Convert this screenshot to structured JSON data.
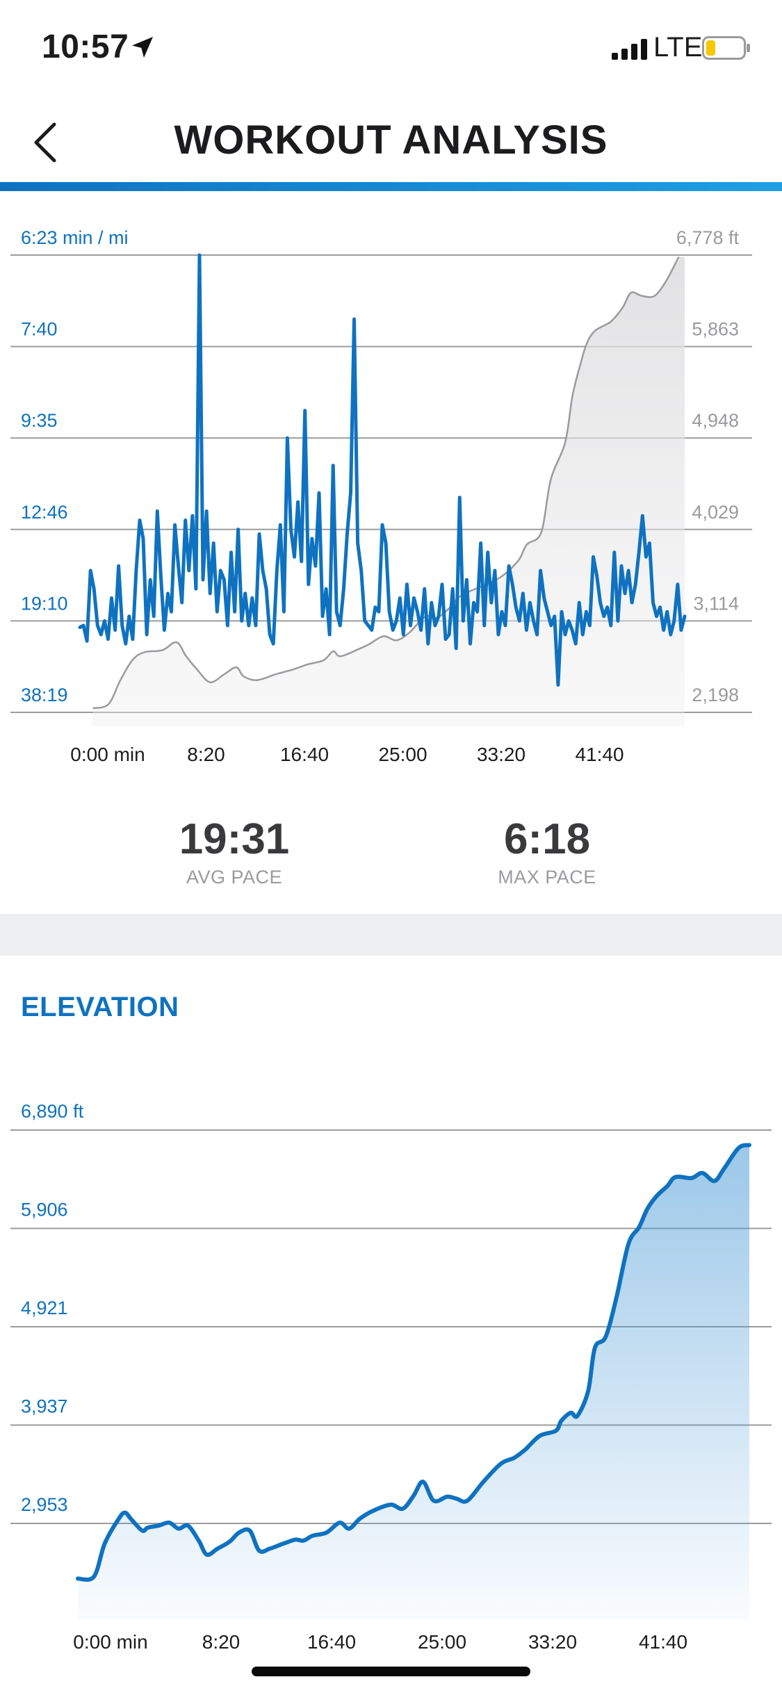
{
  "status_bar": {
    "time": "10:57",
    "network": "LTE",
    "battery_color": "#f5c800"
  },
  "header": {
    "title": "WORKOUT ANALYSIS",
    "back_icon": "chevron-left-icon",
    "accent": "#0f72c0"
  },
  "pace_chart": {
    "stats": {
      "avg_pace": "19:31",
      "avg_label": "AVG PACE",
      "max_pace": "6:18",
      "max_label": "MAX PACE"
    }
  },
  "elevation": {
    "section_title": "ELEVATION"
  },
  "chart_data": [
    {
      "type": "line",
      "title": "",
      "xlabel": "",
      "ylabel": "min / mi",
      "y2label": "ft",
      "x_ticks": [
        "0:00 min",
        "8:20",
        "16:40",
        "25:00",
        "33:20",
        "41:40"
      ],
      "y_ticks_left": [
        "6:23 min / mi",
        "7:40",
        "9:35",
        "12:46",
        "19:10",
        "38:19"
      ],
      "y_ticks_right": [
        "6,778 ft",
        "5,863",
        "4,948",
        "4,029",
        "3,114",
        "2,198"
      ],
      "ylim_elevation": [
        2198,
        6778
      ],
      "x_max_minutes": 50,
      "series": [
        {
          "name": "Pace",
          "axis": "left",
          "color": "#0f72c0",
          "unit": "grid level (0 = 38:19, 5 = 6:23)",
          "values": [
            0.93,
            0.95,
            0.78,
            1.55,
            1.35,
            0.95,
            0.85,
            1.0,
            0.8,
            1.25,
            0.9,
            1.6,
            0.95,
            0.75,
            1.05,
            0.8,
            1.55,
            2.1,
            1.9,
            0.85,
            1.45,
            1.05,
            2.2,
            1.5,
            0.9,
            1.3,
            1.1,
            2.05,
            1.6,
            1.2,
            2.1,
            1.55,
            2.15,
            1.35,
            5.0,
            1.45,
            2.2,
            1.3,
            1.85,
            1.1,
            1.55,
            1.45,
            0.95,
            1.75,
            1.1,
            2.0,
            1.0,
            1.3,
            0.95,
            1.25,
            0.95,
            1.95,
            1.55,
            1.35,
            0.85,
            0.75,
            1.55,
            2.05,
            1.1,
            3.0,
            2.0,
            1.7,
            2.3,
            1.65,
            3.3,
            1.4,
            1.9,
            1.6,
            2.4,
            1.05,
            1.35,
            0.85,
            2.7,
            1.1,
            0.95,
            1.35,
            1.95,
            2.4,
            4.3,
            1.85,
            1.55,
            1.0,
            0.95,
            0.9,
            1.15,
            1.1,
            2.05,
            1.85,
            1.1,
            0.9,
            1.0,
            1.25,
            0.85,
            1.4,
            0.95,
            1.25,
            1.1,
            0.9,
            1.35,
            0.75,
            1.2,
            0.95,
            1.05,
            1.4,
            0.8,
            0.85,
            1.35,
            0.7,
            2.35,
            1.0,
            1.45,
            0.75,
            1.2,
            1.1,
            1.85,
            0.95,
            1.75,
            1.2,
            1.55,
            0.85,
            1.1,
            0.95,
            1.6,
            1.4,
            1.15,
            1.0,
            1.3,
            0.9,
            1.2,
            1.0,
            0.85,
            1.55,
            1.25,
            1.1,
            0.95,
            1.05,
            0.3,
            1.1,
            0.85,
            1.0,
            0.9,
            0.75,
            1.2,
            0.85,
            1.1,
            0.95,
            1.7,
            1.5,
            1.2,
            1.05,
            1.15,
            0.95,
            1.75,
            1.0,
            1.6,
            1.3,
            1.55,
            1.2,
            1.4,
            1.75,
            2.15,
            1.7,
            1.85,
            1.2,
            1.05,
            1.15,
            0.9,
            1.1,
            0.85,
            1.0,
            1.4,
            0.9,
            1.05
          ]
        },
        {
          "name": "Elevation",
          "axis": "right",
          "color": "#9a9a9f",
          "unit": "ft",
          "points": [
            [
              0.5,
              2240
            ],
            [
              1.8,
              2280
            ],
            [
              2.8,
              2520
            ],
            [
              3.8,
              2720
            ],
            [
              4.8,
              2800
            ],
            [
              6.3,
              2820
            ],
            [
              7.5,
              2900
            ],
            [
              8.3,
              2760
            ],
            [
              9.2,
              2630
            ],
            [
              10.3,
              2500
            ],
            [
              11.5,
              2580
            ],
            [
              12.5,
              2650
            ],
            [
              13.1,
              2560
            ],
            [
              14.2,
              2520
            ],
            [
              15.8,
              2580
            ],
            [
              17.3,
              2630
            ],
            [
              18.5,
              2680
            ],
            [
              19.8,
              2720
            ],
            [
              20.6,
              2810
            ],
            [
              21.2,
              2760
            ],
            [
              22.7,
              2830
            ],
            [
              23.6,
              2880
            ],
            [
              24.8,
              2960
            ],
            [
              25.9,
              2920
            ],
            [
              27.0,
              3000
            ],
            [
              28.3,
              3160
            ],
            [
              29.2,
              3140
            ],
            [
              30.3,
              3240
            ],
            [
              31.2,
              3360
            ],
            [
              32.6,
              3440
            ],
            [
              33.4,
              3480
            ],
            [
              34.7,
              3560
            ],
            [
              36.1,
              3720
            ],
            [
              36.8,
              3880
            ],
            [
              38.0,
              4000
            ],
            [
              38.8,
              4530
            ],
            [
              40.0,
              4900
            ],
            [
              40.6,
              5360
            ],
            [
              41.2,
              5650
            ],
            [
              41.8,
              5890
            ],
            [
              42.5,
              6020
            ],
            [
              43.8,
              6110
            ],
            [
              44.8,
              6250
            ],
            [
              45.5,
              6400
            ],
            [
              46.4,
              6370
            ],
            [
              47.3,
              6360
            ],
            [
              47.9,
              6420
            ],
            [
              48.6,
              6550
            ],
            [
              49.5,
              6760
            ]
          ]
        }
      ]
    },
    {
      "type": "area",
      "title": "ELEVATION",
      "xlabel": "",
      "ylabel": "ft",
      "x_ticks": [
        "0:00 min",
        "8:20",
        "16:40",
        "25:00",
        "33:20",
        "41:40"
      ],
      "y_ticks": [
        "6,890 ft",
        "5,906",
        "4,921",
        "3,937",
        "2,953"
      ],
      "ylim": [
        1968,
        6890
      ],
      "x_max_minutes": 50,
      "series": [
        {
          "name": "Elevation",
          "color": "#0f72c0",
          "fill_color": "#0f72c0",
          "unit": "ft",
          "points": [
            [
              0,
              2400
            ],
            [
              1.2,
              2420
            ],
            [
              2.0,
              2750
            ],
            [
              3.0,
              2990
            ],
            [
              3.5,
              3060
            ],
            [
              4.0,
              2990
            ],
            [
              4.8,
              2880
            ],
            [
              5.2,
              2910
            ],
            [
              6.0,
              2930
            ],
            [
              6.8,
              2960
            ],
            [
              7.5,
              2900
            ],
            [
              8.2,
              2930
            ],
            [
              9.0,
              2780
            ],
            [
              9.6,
              2640
            ],
            [
              10.4,
              2700
            ],
            [
              11.3,
              2770
            ],
            [
              12.0,
              2860
            ],
            [
              12.8,
              2880
            ],
            [
              13.5,
              2680
            ],
            [
              14.3,
              2700
            ],
            [
              15.3,
              2750
            ],
            [
              16.2,
              2790
            ],
            [
              16.8,
              2780
            ],
            [
              17.5,
              2830
            ],
            [
              18.5,
              2860
            ],
            [
              19.5,
              2960
            ],
            [
              20.2,
              2900
            ],
            [
              21.0,
              3000
            ],
            [
              22.0,
              3080
            ],
            [
              23.3,
              3140
            ],
            [
              24.2,
              3100
            ],
            [
              25.0,
              3230
            ],
            [
              25.7,
              3370
            ],
            [
              26.5,
              3180
            ],
            [
              27.5,
              3220
            ],
            [
              28.2,
              3200
            ],
            [
              29.0,
              3180
            ],
            [
              30.2,
              3370
            ],
            [
              31.5,
              3550
            ],
            [
              32.5,
              3610
            ],
            [
              33.3,
              3690
            ],
            [
              34.4,
              3830
            ],
            [
              35.6,
              3880
            ],
            [
              36.0,
              3980
            ],
            [
              36.7,
              4060
            ],
            [
              37.2,
              4030
            ],
            [
              38.0,
              4280
            ],
            [
              38.5,
              4710
            ],
            [
              39.3,
              4820
            ],
            [
              40.1,
              5210
            ],
            [
              41.0,
              5750
            ],
            [
              41.8,
              5920
            ],
            [
              42.4,
              6100
            ],
            [
              43.1,
              6230
            ],
            [
              43.9,
              6330
            ],
            [
              44.5,
              6420
            ],
            [
              45.7,
              6410
            ],
            [
              46.5,
              6460
            ],
            [
              47.4,
              6380
            ],
            [
              48.1,
              6500
            ],
            [
              49.2,
              6710
            ],
            [
              50.0,
              6740
            ]
          ]
        }
      ]
    }
  ]
}
